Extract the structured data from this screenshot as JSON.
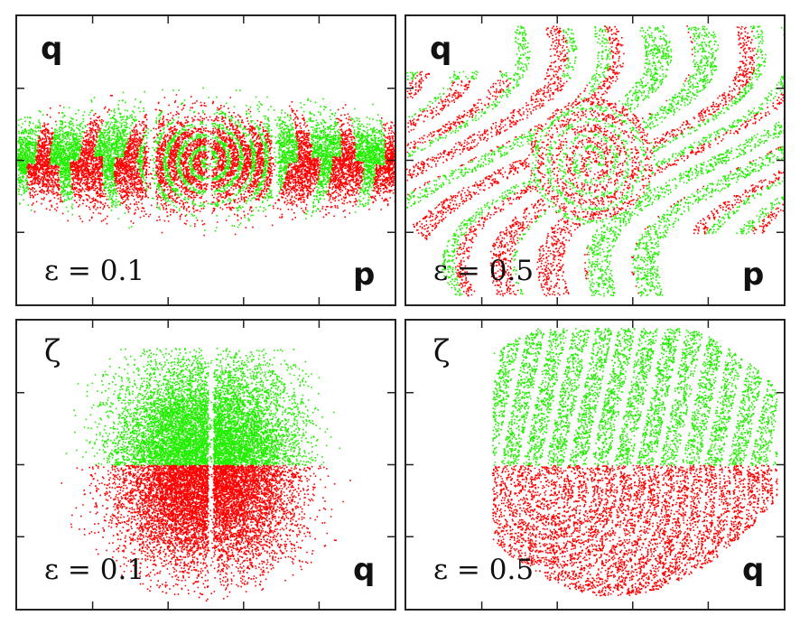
{
  "chart_data": [
    {
      "type": "scatter",
      "ylabel": "q",
      "xlabel": "p",
      "annotation": "ε = 0.1",
      "series": [
        {
          "color": "#ff0000"
        },
        {
          "color": "#22ee00"
        }
      ]
    },
    {
      "type": "scatter",
      "ylabel": "q",
      "xlabel": "p",
      "annotation": "ε = 0.5",
      "series": [
        {
          "color": "#ff0000"
        },
        {
          "color": "#22ee00"
        }
      ]
    },
    {
      "type": "scatter",
      "ylabel": "ζ",
      "xlabel": "q",
      "annotation": "ε = 0.1",
      "series": [
        {
          "color": "#ff0000"
        },
        {
          "color": "#22ee00"
        }
      ]
    },
    {
      "type": "scatter",
      "ylabel": "ζ",
      "xlabel": "q",
      "annotation": "ε = 0.5",
      "series": [
        {
          "color": "#ff0000"
        },
        {
          "color": "#22ee00"
        }
      ]
    }
  ]
}
